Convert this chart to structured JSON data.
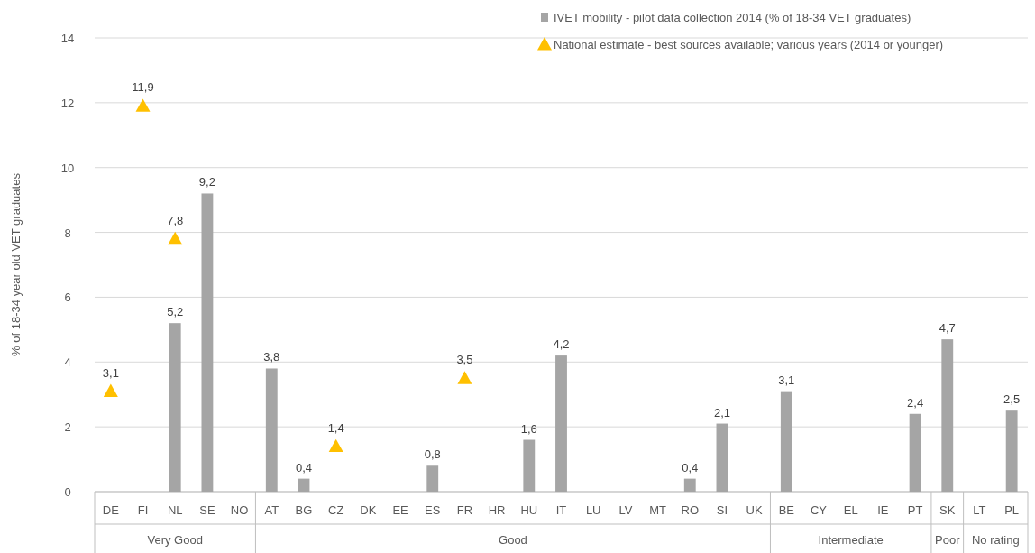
{
  "chart_data": {
    "type": "bar",
    "ylabel": "% of 18-34 year old VET graduates",
    "categories": [
      "DE",
      "FI",
      "NL",
      "SE",
      "NO",
      "AT",
      "BG",
      "CZ",
      "DK",
      "EE",
      "ES",
      "FR",
      "HR",
      "HU",
      "IT",
      "LU",
      "LV",
      "MT",
      "RO",
      "SI",
      "UK",
      "BE",
      "CY",
      "EL",
      "IE",
      "PT",
      "SK",
      "LT",
      "PL"
    ],
    "series": [
      {
        "name": "IVET mobility - pilot data collection 2014 (% of 18-34 VET graduates)",
        "color": "#a5a5a5",
        "values": [
          null,
          null,
          5.2,
          9.2,
          null,
          3.8,
          0.4,
          null,
          null,
          null,
          0.8,
          null,
          null,
          1.6,
          4.2,
          null,
          null,
          null,
          0.4,
          2.1,
          null,
          3.1,
          null,
          null,
          null,
          2.4,
          4.7,
          null,
          2.5
        ],
        "value_labels": [
          null,
          null,
          "5,2",
          "9,2",
          null,
          "3,8",
          "0,4",
          null,
          null,
          null,
          "0,8",
          null,
          null,
          "1,6",
          "4,2",
          null,
          null,
          null,
          "0,4",
          "2,1",
          null,
          "3,1",
          null,
          null,
          null,
          "2,4",
          "4,7",
          null,
          "2,5"
        ]
      },
      {
        "name": "National estimate - best sources available; various years (2014 or younger)",
        "type": "scatter",
        "color": "#ffc000",
        "marker": "triangle",
        "values": [
          3.1,
          11.9,
          7.8,
          null,
          null,
          null,
          null,
          1.4,
          null,
          null,
          null,
          3.5,
          null,
          null,
          null,
          null,
          null,
          null,
          null,
          null,
          null,
          null,
          null,
          null,
          null,
          null,
          null,
          null,
          null
        ],
        "value_labels": [
          "3,1",
          "11,9",
          "7,8",
          null,
          null,
          null,
          null,
          "1,4",
          null,
          null,
          null,
          "3,5",
          null,
          null,
          null,
          null,
          null,
          null,
          null,
          null,
          null,
          null,
          null,
          null,
          null,
          null,
          null,
          null,
          null
        ]
      }
    ],
    "annotations": [
      "Very Good",
      "Good",
      "Intermediate",
      "Poor",
      "No rating"
    ],
    "ylim": [
      0,
      14
    ],
    "yticks": [
      0,
      2,
      4,
      6,
      8,
      10,
      12,
      14
    ],
    "grid": "y",
    "legend": "top right"
  }
}
